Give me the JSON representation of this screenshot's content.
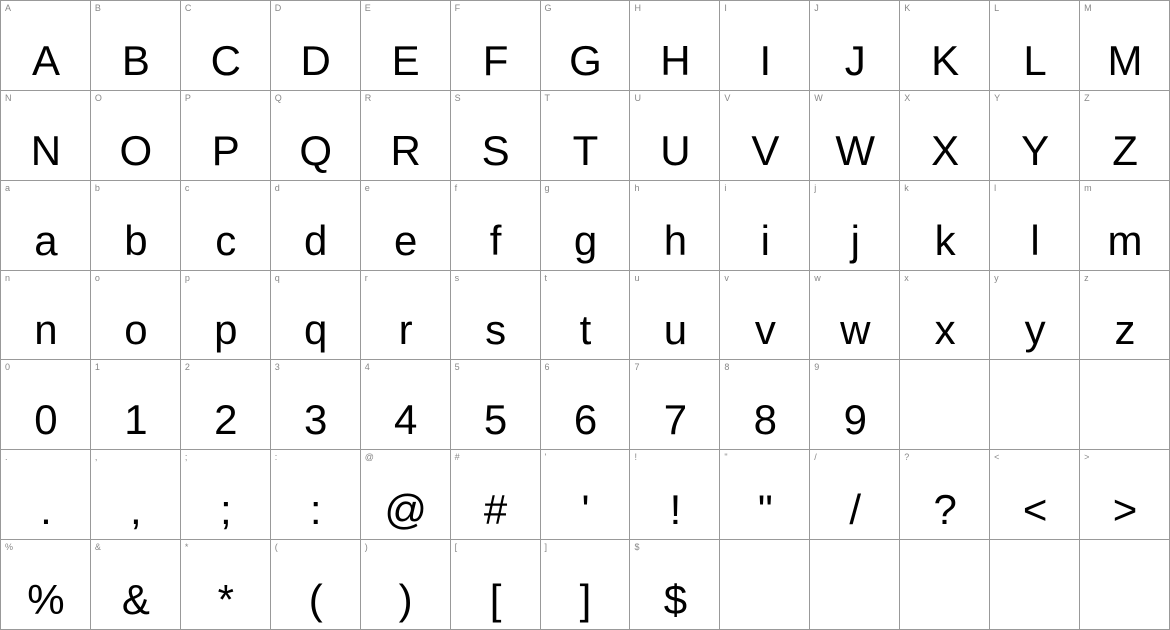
{
  "chart": {
    "type": "table",
    "columns": 13,
    "rows": 7,
    "border_color": "#999999",
    "background_color": "#ffffff",
    "label_fontsize": 9,
    "label_color": "#888888",
    "glyph_fontsize": 42,
    "glyph_color": "#000000",
    "cells": [
      {
        "label": "A",
        "glyph": "A"
      },
      {
        "label": "B",
        "glyph": "B"
      },
      {
        "label": "C",
        "glyph": "C"
      },
      {
        "label": "D",
        "glyph": "D"
      },
      {
        "label": "E",
        "glyph": "E"
      },
      {
        "label": "F",
        "glyph": "F"
      },
      {
        "label": "G",
        "glyph": "G"
      },
      {
        "label": "H",
        "glyph": "H"
      },
      {
        "label": "I",
        "glyph": "I"
      },
      {
        "label": "J",
        "glyph": "J"
      },
      {
        "label": "K",
        "glyph": "K"
      },
      {
        "label": "L",
        "glyph": "L"
      },
      {
        "label": "M",
        "glyph": "M"
      },
      {
        "label": "N",
        "glyph": "N"
      },
      {
        "label": "O",
        "glyph": "O"
      },
      {
        "label": "P",
        "glyph": "P"
      },
      {
        "label": "Q",
        "glyph": "Q"
      },
      {
        "label": "R",
        "glyph": "R"
      },
      {
        "label": "S",
        "glyph": "S"
      },
      {
        "label": "T",
        "glyph": "T"
      },
      {
        "label": "U",
        "glyph": "U"
      },
      {
        "label": "V",
        "glyph": "V"
      },
      {
        "label": "W",
        "glyph": "W"
      },
      {
        "label": "X",
        "glyph": "X"
      },
      {
        "label": "Y",
        "glyph": "Y"
      },
      {
        "label": "Z",
        "glyph": "Z"
      },
      {
        "label": "a",
        "glyph": "a"
      },
      {
        "label": "b",
        "glyph": "b"
      },
      {
        "label": "c",
        "glyph": "c"
      },
      {
        "label": "d",
        "glyph": "d"
      },
      {
        "label": "e",
        "glyph": "e"
      },
      {
        "label": "f",
        "glyph": "f"
      },
      {
        "label": "g",
        "glyph": "g"
      },
      {
        "label": "h",
        "glyph": "h"
      },
      {
        "label": "i",
        "glyph": "i"
      },
      {
        "label": "j",
        "glyph": "j"
      },
      {
        "label": "k",
        "glyph": "k"
      },
      {
        "label": "l",
        "glyph": "l"
      },
      {
        "label": "m",
        "glyph": "m"
      },
      {
        "label": "n",
        "glyph": "n"
      },
      {
        "label": "o",
        "glyph": "o"
      },
      {
        "label": "p",
        "glyph": "p"
      },
      {
        "label": "q",
        "glyph": "q"
      },
      {
        "label": "r",
        "glyph": "r"
      },
      {
        "label": "s",
        "glyph": "s"
      },
      {
        "label": "t",
        "glyph": "t"
      },
      {
        "label": "u",
        "glyph": "u"
      },
      {
        "label": "v",
        "glyph": "v"
      },
      {
        "label": "w",
        "glyph": "w"
      },
      {
        "label": "x",
        "glyph": "x"
      },
      {
        "label": "y",
        "glyph": "y"
      },
      {
        "label": "z",
        "glyph": "z"
      },
      {
        "label": "0",
        "glyph": "0"
      },
      {
        "label": "1",
        "glyph": "1"
      },
      {
        "label": "2",
        "glyph": "2"
      },
      {
        "label": "3",
        "glyph": "3"
      },
      {
        "label": "4",
        "glyph": "4"
      },
      {
        "label": "5",
        "glyph": "5"
      },
      {
        "label": "6",
        "glyph": "6"
      },
      {
        "label": "7",
        "glyph": "7"
      },
      {
        "label": "8",
        "glyph": "8"
      },
      {
        "label": "9",
        "glyph": "9"
      },
      {
        "label": "",
        "glyph": "",
        "empty": true
      },
      {
        "label": "",
        "glyph": "",
        "empty": true
      },
      {
        "label": "",
        "glyph": "",
        "empty": true
      },
      {
        "label": ".",
        "glyph": "."
      },
      {
        "label": ",",
        "glyph": ","
      },
      {
        "label": ";",
        "glyph": ";"
      },
      {
        "label": ":",
        "glyph": ":"
      },
      {
        "label": "@",
        "glyph": "@"
      },
      {
        "label": "#",
        "glyph": "#"
      },
      {
        "label": "'",
        "glyph": "'"
      },
      {
        "label": "!",
        "glyph": "!"
      },
      {
        "label": "\"",
        "glyph": "\""
      },
      {
        "label": "/",
        "glyph": "/"
      },
      {
        "label": "?",
        "glyph": "?"
      },
      {
        "label": "<",
        "glyph": "<"
      },
      {
        "label": ">",
        "glyph": ">"
      },
      {
        "label": "%",
        "glyph": "%"
      },
      {
        "label": "&",
        "glyph": "&"
      },
      {
        "label": "*",
        "glyph": "*"
      },
      {
        "label": "(",
        "glyph": "("
      },
      {
        "label": ")",
        "glyph": ")"
      },
      {
        "label": "[",
        "glyph": "["
      },
      {
        "label": "]",
        "glyph": "]"
      },
      {
        "label": "$",
        "glyph": "$"
      },
      {
        "label": "",
        "glyph": "",
        "empty": true
      },
      {
        "label": "",
        "glyph": "",
        "empty": true
      },
      {
        "label": "",
        "glyph": "",
        "empty": true
      },
      {
        "label": "",
        "glyph": "",
        "empty": true
      },
      {
        "label": "",
        "glyph": "",
        "empty": true
      }
    ]
  }
}
